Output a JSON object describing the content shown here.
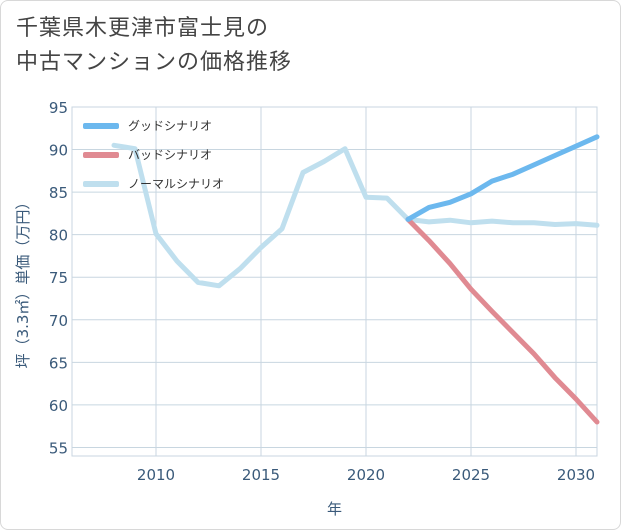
{
  "title_lines": [
    "千葉県木更津市富士見の",
    "中古マンションの価格推移"
  ],
  "chart_data": {
    "type": "line",
    "title": "千葉県木更津市富士見の中古マンションの価格推移",
    "xlabel": "年",
    "ylabel": "坪（3.3㎡）単価（万円）",
    "xlim": [
      2006,
      2031
    ],
    "ylim": [
      54,
      95
    ],
    "x_ticks": [
      2010,
      2015,
      2020,
      2025,
      2030
    ],
    "y_ticks": [
      55,
      60,
      65,
      70,
      75,
      80,
      85,
      90,
      95
    ],
    "grid": true,
    "legend_position": "top-left",
    "series": [
      {
        "name": "グッドシナリオ",
        "color": "#6cb8ee",
        "x": [
          2022,
          2023,
          2024,
          2025,
          2026,
          2027,
          2028,
          2029,
          2030,
          2031
        ],
        "values": [
          81.8,
          83.2,
          83.8,
          84.8,
          86.3,
          87.1,
          88.2,
          89.3,
          90.4,
          91.5
        ]
      },
      {
        "name": "バッドシナリオ",
        "color": "#e08a92",
        "x": [
          2022,
          2023,
          2024,
          2025,
          2026,
          2027,
          2028,
          2029,
          2030,
          2031
        ],
        "values": [
          81.8,
          79.3,
          76.6,
          73.6,
          71.0,
          68.5,
          66.0,
          63.2,
          60.7,
          58.0
        ]
      },
      {
        "name": "ノーマルシナリオ",
        "color": "#bfdfee",
        "x": [
          2008,
          2009,
          2010,
          2011,
          2012,
          2013,
          2014,
          2015,
          2016,
          2017,
          2018,
          2019,
          2020,
          2021,
          2022,
          2023,
          2024,
          2025,
          2026,
          2027,
          2028,
          2029,
          2030,
          2031
        ],
        "values": [
          90.5,
          90.1,
          80.1,
          76.9,
          74.4,
          74.0,
          76.0,
          78.5,
          80.7,
          87.3,
          88.6,
          90.1,
          84.4,
          84.3,
          81.8,
          81.5,
          81.7,
          81.4,
          81.6,
          81.4,
          81.4,
          81.2,
          81.3,
          81.1
        ]
      }
    ]
  }
}
